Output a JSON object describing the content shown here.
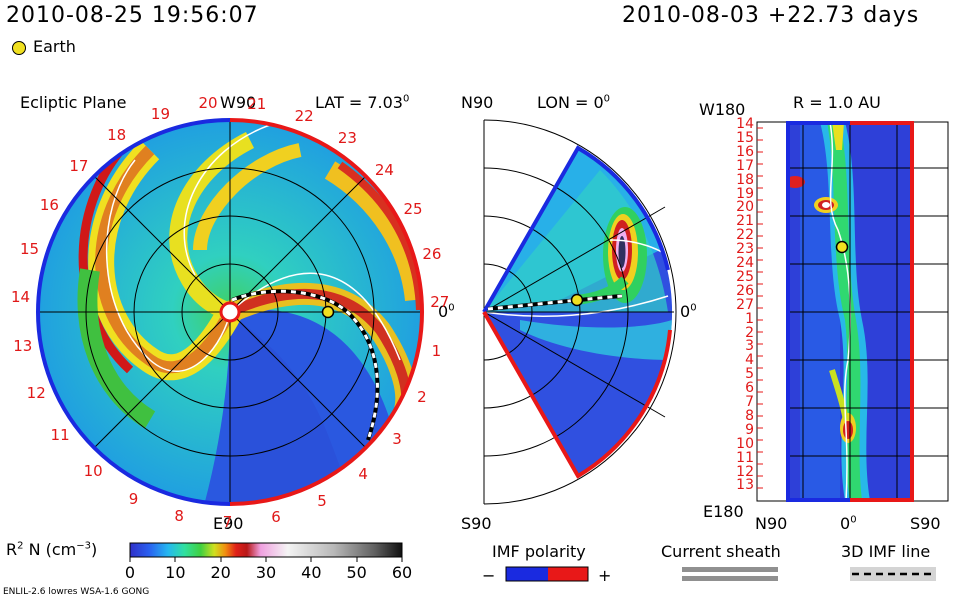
{
  "header": {
    "timestamp": "2010-08-25 19:56:07",
    "relative_time": "2010-08-03 +22.73 days"
  },
  "legend": {
    "earth_label": "Earth",
    "imf_polarity_label": "IMF polarity",
    "minus": "−",
    "plus": "+",
    "current_sheath_label": "Current sheath",
    "imf_line_label": "3D IMF line"
  },
  "ecliptic_panel": {
    "title": "Ecliptic Plane",
    "top_label": "W90",
    "bottom_label": "E90",
    "lat_label": "LAT = 7.03",
    "lat_sup": "0",
    "right_label": "0",
    "right_sup": "0",
    "rim_numbers": [
      "20",
      "21",
      "22",
      "23",
      "24",
      "25",
      "26",
      "27",
      "1",
      "2",
      "3",
      "4",
      "5",
      "6",
      "7",
      "8",
      "9",
      "10",
      "11",
      "12",
      "13",
      "14",
      "15",
      "16",
      "17",
      "18",
      "19"
    ]
  },
  "meridional_panel": {
    "top_left_label": "N90",
    "lon_label": "LON = 0",
    "lon_sup": "0",
    "bottom_left_label": "S90",
    "right_label": "0",
    "right_sup": "0"
  },
  "radial_panel": {
    "title": "R = 1.0 AU",
    "top_left_label": "W180",
    "bottom_left_label": "E180",
    "x_labels": [
      "N90",
      "0",
      "S90"
    ],
    "x_mid_sup": "0",
    "y_labels": [
      "14",
      "15",
      "16",
      "17",
      "18",
      "19",
      "20",
      "21",
      "22",
      "23",
      "24",
      "25",
      "26",
      "27",
      "1",
      "2",
      "3",
      "4",
      "5",
      "6",
      "7",
      "8",
      "9",
      "10",
      "11",
      "12",
      "13"
    ]
  },
  "colorbar": {
    "label": "R",
    "label_sup": "2",
    "label_rest": " N (cm",
    "label_exp": "−3",
    "label_close": ")",
    "ticks": [
      "0",
      "10",
      "20",
      "30",
      "40",
      "50",
      "60"
    ],
    "colors": [
      "#2020c8",
      "#2a6af0",
      "#25c0f0",
      "#30e0a0",
      "#40d040",
      "#c8e020",
      "#f0a010",
      "#e02018",
      "#b81818",
      "#f0a0e0",
      "#f0f0f0",
      "#b8b8b8",
      "#707070",
      "#202020"
    ]
  },
  "footer": {
    "model_label": "ENLIL-2.6 lowres WSA-1.6 GONG"
  }
}
